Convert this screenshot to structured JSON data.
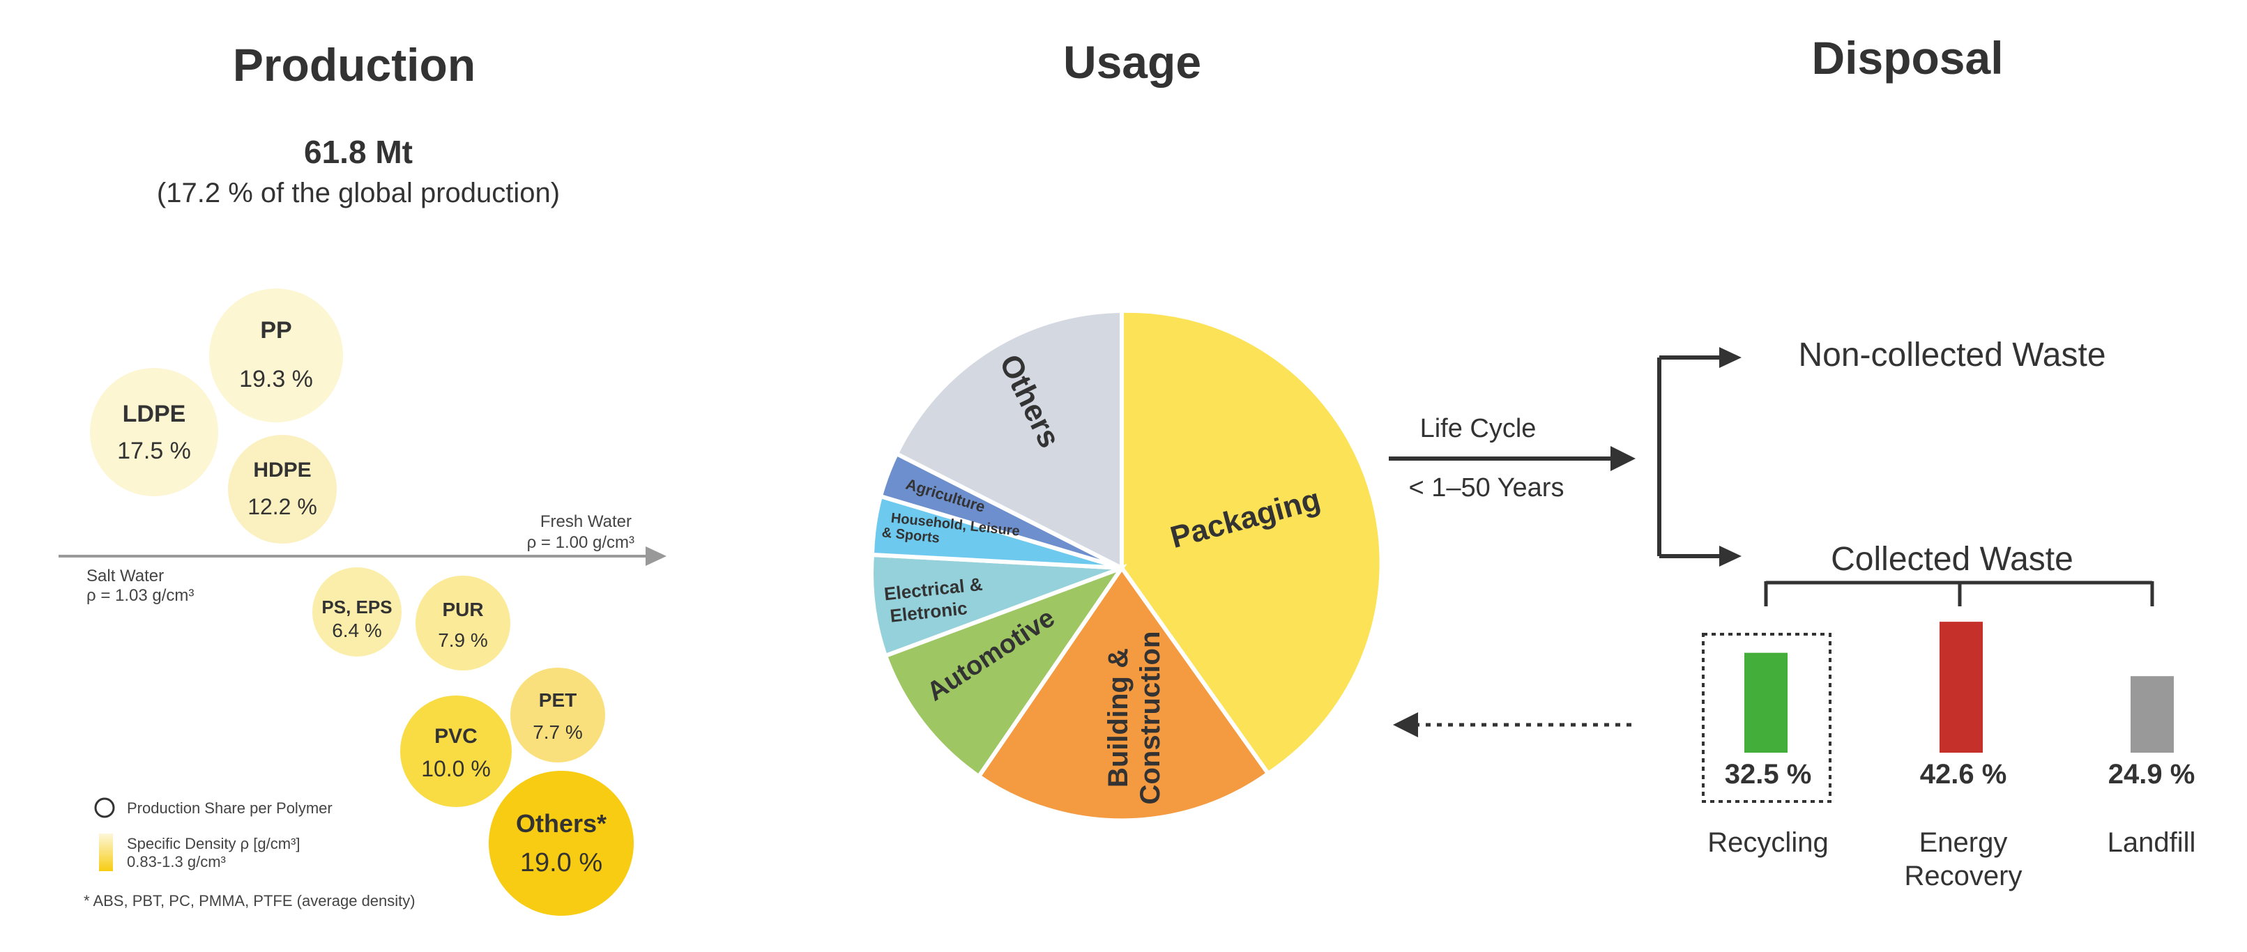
{
  "sections": {
    "production": "Production",
    "usage": "Usage",
    "disposal": "Disposal"
  },
  "production": {
    "total": "61.8 Mt",
    "share": "(17.2 % of the global production)",
    "fresh_water": "Fresh Water",
    "fresh_density": "ρ = 1.00 g/cm³",
    "salt_water": "Salt Water",
    "salt_density": "ρ = 1.03 g/cm³",
    "polymers": [
      {
        "name": "PP",
        "share": "19.3 %",
        "color": "#fcf6d2"
      },
      {
        "name": "LDPE",
        "share": "17.5 %",
        "color": "#fcf6d2"
      },
      {
        "name": "HDPE",
        "share": "12.2 %",
        "color": "#fbf0c0"
      },
      {
        "name": "PS, EPS",
        "share": "6.4 %",
        "color": "#fbeeaa"
      },
      {
        "name": "PUR",
        "share": "7.9 %",
        "color": "#fbea97"
      },
      {
        "name": "PET",
        "share": "7.7 %",
        "color": "#fae07c"
      },
      {
        "name": "PVC",
        "share": "10.0 %",
        "color": "#f9dc44"
      },
      {
        "name": "Others*",
        "share": "19.0 %",
        "color": "#f7cc12"
      }
    ],
    "legend": {
      "share_label": "Production Share per Polymer",
      "density_label": "Specific Density ρ [g/cm³]",
      "density_range": "0.83-1.3 g/cm³",
      "footnote": "* ABS, PBT, PC, PMMA, PTFE (average density)"
    }
  },
  "usage": {
    "slices": [
      {
        "name": "Packaging",
        "color": "#fbe257"
      },
      {
        "name": "Building & Construction",
        "color": "#f49b42"
      },
      {
        "name": "Automotive",
        "color": "#9ec763"
      },
      {
        "name": "Electrical & Eletronic",
        "color": "#94d1da"
      },
      {
        "name": "Household, Leisure & Sports",
        "color": "#6ec9ef"
      },
      {
        "name": "Agriculture",
        "color": "#6e8fcd"
      },
      {
        "name": "Others",
        "color": "#d4d8e1"
      }
    ],
    "life_cycle": "Life Cycle",
    "life_years": "< 1–50 Years"
  },
  "disposal": {
    "non_collected": "Non-collected Waste",
    "collected": "Collected Waste",
    "bars": [
      {
        "name": "Recycling",
        "value": 32.5,
        "label": "32.5 %",
        "color": "#44ae3a"
      },
      {
        "name": "Energy Recovery",
        "value": 42.6,
        "label": "42.6 %",
        "color": "#c6302b"
      },
      {
        "name": "Landfill",
        "value": 24.9,
        "label": "24.9 %",
        "color": "#999999"
      }
    ]
  }
}
